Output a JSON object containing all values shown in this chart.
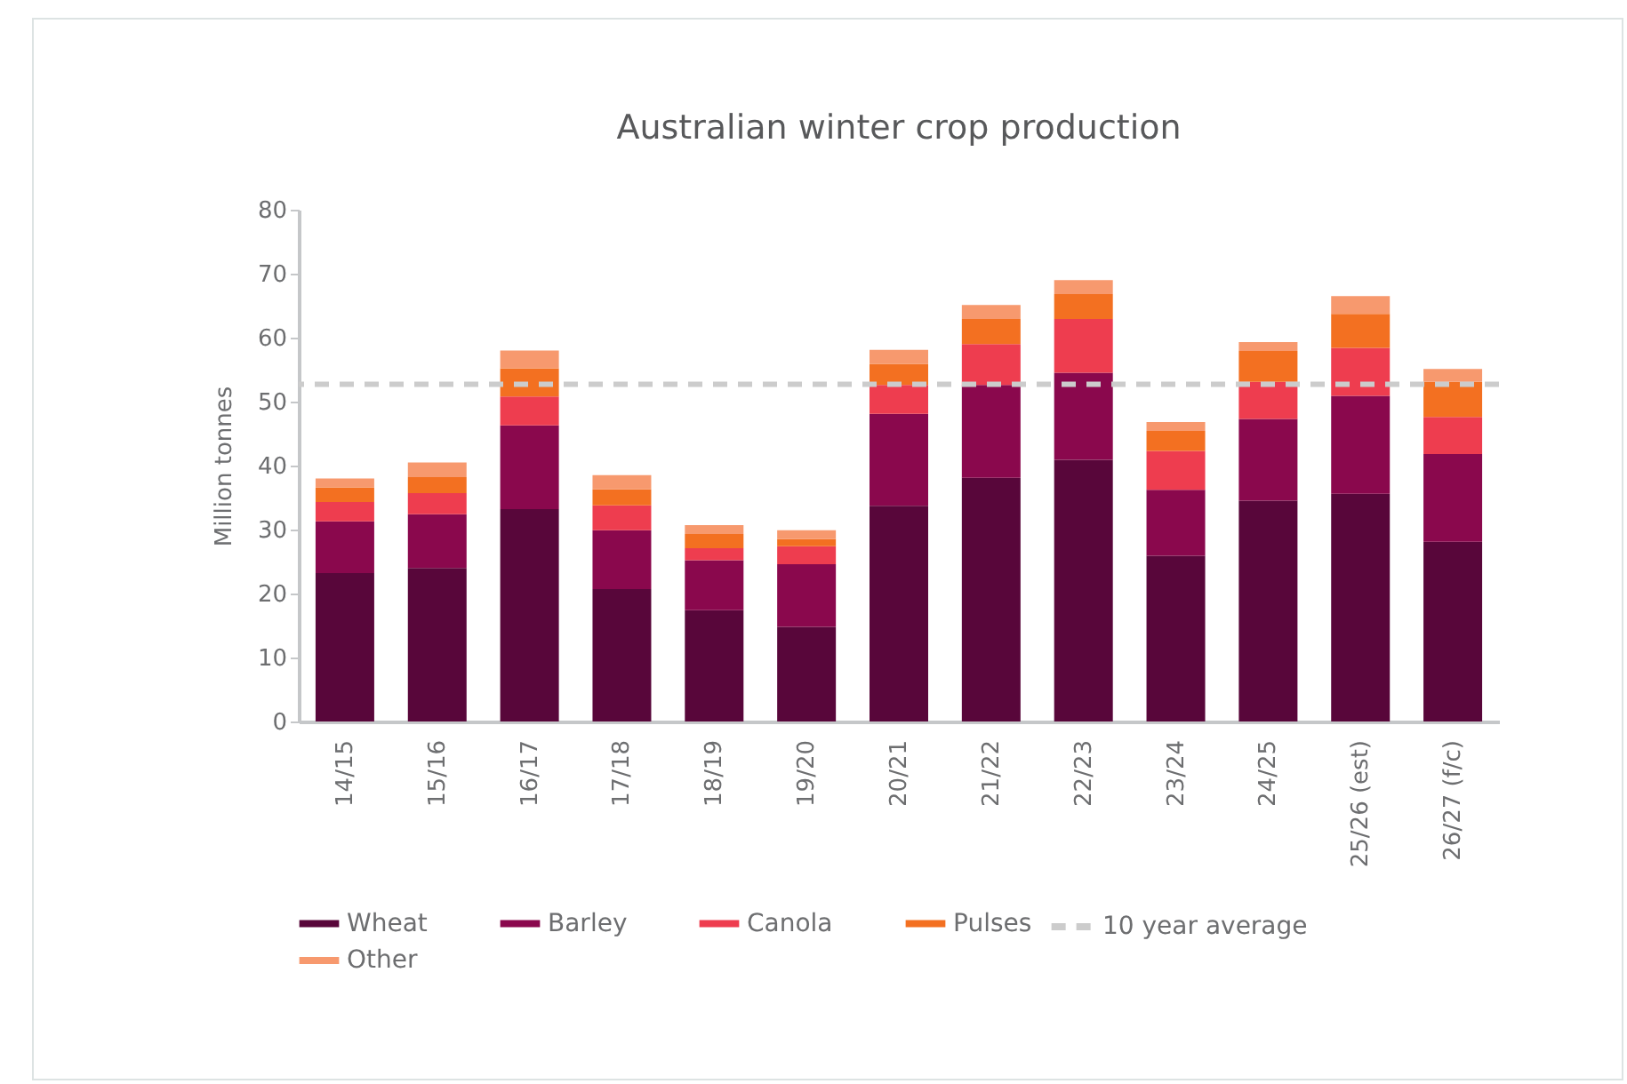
{
  "chart_data": {
    "type": "bar",
    "title": "Australian winter crop production",
    "ylabel": "Million tonnes",
    "stacked": true,
    "categories": [
      "14/15",
      "15/16",
      "16/17",
      "17/18",
      "18/19",
      "19/20",
      "20/21",
      "21/22",
      "22/23",
      "23/24",
      "24/25",
      "25/26 (est)",
      "26/27 (f/c)"
    ],
    "series": [
      {
        "name": "Wheat",
        "color": "#58063a",
        "values": [
          23.2,
          24.0,
          33.2,
          20.7,
          17.4,
          14.8,
          33.7,
          38.1,
          40.9,
          25.9,
          34.5,
          35.6,
          28.1
        ]
      },
      {
        "name": "Barley",
        "color": "#8a084d",
        "values": [
          8.1,
          8.4,
          13.1,
          9.2,
          7.8,
          9.8,
          14.4,
          14.5,
          13.6,
          10.3,
          12.8,
          15.3,
          13.7
        ]
      },
      {
        "name": "Canola",
        "color": "#ee3d4f",
        "values": [
          3.0,
          3.3,
          4.5,
          3.9,
          1.9,
          2.8,
          4.5,
          6.4,
          8.4,
          6.1,
          5.8,
          7.5,
          5.8
        ]
      },
      {
        "name": "Pulses",
        "color": "#f37021",
        "values": [
          2.3,
          2.5,
          4.4,
          2.5,
          2.2,
          1.1,
          3.3,
          3.9,
          3.9,
          3.1,
          4.8,
          5.3,
          5.5
        ]
      },
      {
        "name": "Other",
        "color": "#f7996e",
        "values": [
          1.4,
          2.3,
          2.8,
          2.2,
          1.4,
          1.4,
          2.2,
          2.2,
          2.2,
          1.4,
          1.4,
          2.8,
          2.0
        ]
      }
    ],
    "ylim": [
      0,
      80
    ],
    "yticks": [
      0,
      10,
      20,
      30,
      40,
      50,
      60,
      70,
      80
    ],
    "grid": false,
    "legend": "bottom",
    "ref_lines": [
      {
        "axis": "y",
        "value": 52.7,
        "label": "10 year average",
        "color": "#cccccc",
        "line_style": "dashed"
      }
    ]
  }
}
